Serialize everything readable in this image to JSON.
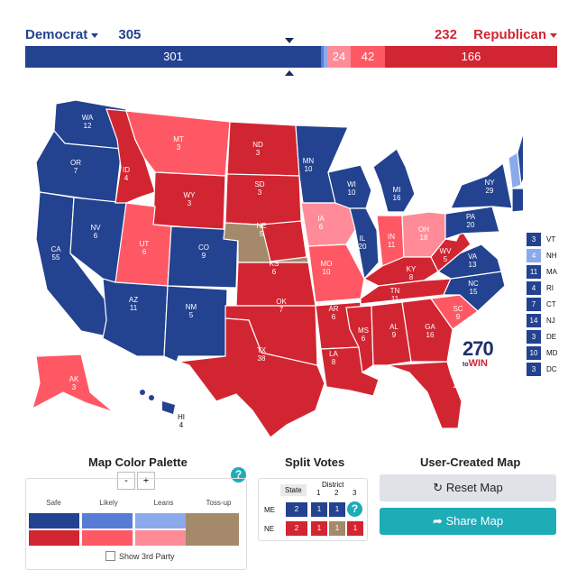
{
  "header": {
    "dem_label": "Democrat",
    "dem_total": "305",
    "rep_label": "Republican",
    "rep_total": "232"
  },
  "tally": {
    "dem_safe": "301",
    "rep_leans": "24",
    "rep_likely": "42",
    "rep_safe": "166"
  },
  "colors": {
    "dem_safe": "#23428f",
    "dem_likely": "#577cd6",
    "dem_leans": "#8aaaeb",
    "rep_safe": "#d22532",
    "rep_likely": "#ff5865",
    "rep_leans": "#ff8b98",
    "tossup": "#a48a6a"
  },
  "states": [
    {
      "abbr": "WA",
      "ev": "12"
    },
    {
      "abbr": "OR",
      "ev": "7"
    },
    {
      "abbr": "CA",
      "ev": "55"
    },
    {
      "abbr": "NV",
      "ev": "6"
    },
    {
      "abbr": "ID",
      "ev": "4"
    },
    {
      "abbr": "MT",
      "ev": "3"
    },
    {
      "abbr": "WY",
      "ev": "3"
    },
    {
      "abbr": "UT",
      "ev": "6"
    },
    {
      "abbr": "AZ",
      "ev": "11"
    },
    {
      "abbr": "CO",
      "ev": "9"
    },
    {
      "abbr": "NM",
      "ev": "5"
    },
    {
      "abbr": "ND",
      "ev": "3"
    },
    {
      "abbr": "SD",
      "ev": "3"
    },
    {
      "abbr": "NE",
      "ev": "5"
    },
    {
      "abbr": "KS",
      "ev": "6"
    },
    {
      "abbr": "OK",
      "ev": "7"
    },
    {
      "abbr": "TX",
      "ev": "38"
    },
    {
      "abbr": "MN",
      "ev": "10"
    },
    {
      "abbr": "IA",
      "ev": "6"
    },
    {
      "abbr": "MO",
      "ev": "10"
    },
    {
      "abbr": "AR",
      "ev": "6"
    },
    {
      "abbr": "LA",
      "ev": "8"
    },
    {
      "abbr": "WI",
      "ev": "10"
    },
    {
      "abbr": "IL",
      "ev": "20"
    },
    {
      "abbr": "MI",
      "ev": "16"
    },
    {
      "abbr": "IN",
      "ev": "11"
    },
    {
      "abbr": "OH",
      "ev": "18"
    },
    {
      "abbr": "KY",
      "ev": "8"
    },
    {
      "abbr": "TN",
      "ev": "11"
    },
    {
      "abbr": "MS",
      "ev": "6"
    },
    {
      "abbr": "AL",
      "ev": "9"
    },
    {
      "abbr": "GA",
      "ev": "16"
    },
    {
      "abbr": "FL",
      "ev": "29"
    },
    {
      "abbr": "SC",
      "ev": "9"
    },
    {
      "abbr": "NC",
      "ev": "15"
    },
    {
      "abbr": "VA",
      "ev": "13"
    },
    {
      "abbr": "WV",
      "ev": "5"
    },
    {
      "abbr": "PA",
      "ev": "20"
    },
    {
      "abbr": "NY",
      "ev": "29"
    },
    {
      "abbr": "ME",
      "ev": "4"
    },
    {
      "abbr": "AK",
      "ev": "3"
    },
    {
      "abbr": "HI",
      "ev": "4"
    }
  ],
  "small_states": [
    {
      "ev": "3",
      "abbr": "VT"
    },
    {
      "ev": "4",
      "abbr": "NH"
    },
    {
      "ev": "11",
      "abbr": "MA"
    },
    {
      "ev": "4",
      "abbr": "RI"
    },
    {
      "ev": "7",
      "abbr": "CT"
    },
    {
      "ev": "14",
      "abbr": "NJ"
    },
    {
      "ev": "3",
      "abbr": "DE"
    },
    {
      "ev": "10",
      "abbr": "MD"
    },
    {
      "ev": "3",
      "abbr": "DC"
    }
  ],
  "logo": {
    "number": "270",
    "to": "to",
    "win": "WIN"
  },
  "palette": {
    "title": "Map Color Palette",
    "minus": "-",
    "plus": "+",
    "help": "?",
    "labels": [
      "Safe",
      "Likely",
      "Leans",
      "Toss-up"
    ],
    "show_third": "Show 3rd Party"
  },
  "split": {
    "title": "Split Votes",
    "state_hdr": "State",
    "district_hdr": "District",
    "d1": "1",
    "d2": "2",
    "d3": "3",
    "me": "ME",
    "ne": "NE",
    "me_state": "2",
    "me_1": "1",
    "me_2": "1",
    "ne_state": "2",
    "ne_1": "1",
    "ne_2": "1",
    "ne_3": "1",
    "help": "?"
  },
  "user_map": {
    "title": "User-Created Map",
    "reset": "Reset Map",
    "share": "Share Map"
  }
}
